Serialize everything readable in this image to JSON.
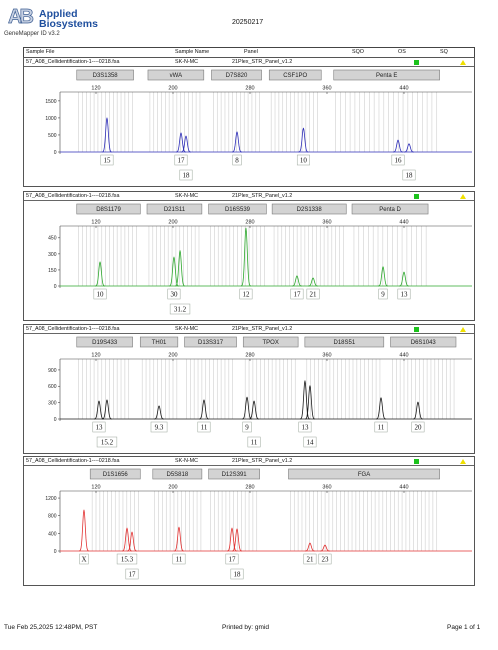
{
  "header": {
    "logo_mark": "AB",
    "logo_line1": "Applied",
    "logo_line2": "Biosystems",
    "software": "GeneMapper ID v3.2",
    "date": "20250217"
  },
  "table_header": {
    "sample_file": "Sample File",
    "sample_name": "Sample Name",
    "panel": "Panel",
    "sqo": "SQO",
    "os": "OS",
    "sq": "SQ"
  },
  "samples": [
    {
      "file": "57_A08_Cellidentification-1----0218.fsa",
      "name": "SK-N-MC",
      "panel": "21Plex_STR_Panel_v1.2",
      "os_icon": "green-square-icon",
      "sq_icon": "yellow-triangle-icon"
    },
    {
      "file": "57_A08_Cellidentification-1----0218.fsa",
      "name": "SK-N-MC",
      "panel": "21Plex_STR_Panel_v1.2",
      "os_icon": "green-square-icon",
      "sq_icon": "yellow-triangle-icon"
    },
    {
      "file": "57_A08_Cellidentification-1----0218.fsa",
      "name": "SK-N-MC",
      "panel": "21Plex_STR_Panel_v1.2",
      "os_icon": "green-square-icon",
      "sq_icon": "yellow-triangle-icon"
    },
    {
      "file": "57_A08_Cellidentification-1----0218.fsa",
      "name": "SK-N-MC",
      "panel": "21Plex_STR_Panel_v1.2",
      "os_icon": "green-square-icon",
      "sq_icon": "yellow-triangle-icon"
    }
  ],
  "colors": {
    "logo_blue": "#1f4f9e",
    "os_pass": "#1cc21c",
    "sq_flag": "#f0e000",
    "marker_fill": "#d3d3d3",
    "marker_border": "#7b7b7b",
    "bin": "#cfcfcf",
    "label_border": "#9aa69a"
  },
  "chart_data": [
    {
      "type": "line",
      "color": "#2e2eb8",
      "xlim": [
        83,
        515
      ],
      "ylim": [
        0,
        1760
      ],
      "x_ticks": [
        120,
        200,
        280,
        360,
        440
      ],
      "y_ticks": [
        1500,
        1000,
        500,
        0
      ],
      "markers": [
        {
          "name": "D3S1358",
          "range": [
            100,
            159
          ]
        },
        {
          "name": "vWA",
          "range": [
            174,
            232
          ]
        },
        {
          "name": "D7S820",
          "range": [
            240,
            292
          ]
        },
        {
          "name": "CSF1PO",
          "range": [
            300,
            354
          ]
        },
        {
          "name": "Penta E",
          "range": [
            367,
            477
          ]
        }
      ],
      "peaks": [
        {
          "size": 131.4,
          "height": 1000,
          "allele": "15"
        },
        {
          "size": 208.3,
          "height": 560,
          "allele": "17"
        },
        {
          "size": 213.5,
          "height": 470,
          "allele": "18"
        },
        {
          "size": 266.5,
          "height": 590,
          "allele": "8"
        },
        {
          "size": 335.5,
          "height": 700,
          "allele": "10"
        },
        {
          "size": 433.8,
          "height": 350,
          "allele": "16"
        },
        {
          "size": 445.2,
          "height": 240,
          "allele": "18"
        }
      ]
    },
    {
      "type": "line",
      "color": "#2ea82e",
      "xlim": [
        83,
        515
      ],
      "ylim": [
        0,
        560
      ],
      "x_ticks": [
        120,
        200,
        280,
        360,
        440
      ],
      "y_ticks": [
        450,
        300,
        150,
        0
      ],
      "markers": [
        {
          "name": "D8S1179",
          "range": [
            100,
            166
          ]
        },
        {
          "name": "D21S11",
          "range": [
            173,
            230
          ]
        },
        {
          "name": "D16S539",
          "range": [
            237,
            297
          ]
        },
        {
          "name": "D2S1338",
          "range": [
            303,
            380
          ]
        },
        {
          "name": "Penta D",
          "range": [
            386,
            465
          ]
        }
      ],
      "peaks": [
        {
          "size": 124.2,
          "height": 225,
          "allele": "10"
        },
        {
          "size": 201.0,
          "height": 270,
          "allele": "30"
        },
        {
          "size": 207.3,
          "height": 330,
          "allele": "31.2"
        },
        {
          "size": 275.8,
          "height": 540,
          "allele": "12"
        },
        {
          "size": 328.8,
          "height": 95,
          "allele": "17"
        },
        {
          "size": 345.5,
          "height": 75,
          "allele": "21"
        },
        {
          "size": 418.2,
          "height": 180,
          "allele": "9"
        },
        {
          "size": 440.0,
          "height": 130,
          "allele": "13"
        }
      ]
    },
    {
      "type": "line",
      "color": "#1a1a1a",
      "xlim": [
        83,
        515
      ],
      "ylim": [
        0,
        1100
      ],
      "x_ticks": [
        120,
        200,
        280,
        360,
        440
      ],
      "y_ticks": [
        900,
        600,
        300,
        0
      ],
      "markers": [
        {
          "name": "D19S433",
          "range": [
            100,
            158
          ]
        },
        {
          "name": "TH01",
          "range": [
            166,
            205
          ]
        },
        {
          "name": "D13S317",
          "range": [
            212,
            266
          ]
        },
        {
          "name": "TPOX",
          "range": [
            273,
            330
          ]
        },
        {
          "name": "D18S51",
          "range": [
            337,
            419
          ]
        },
        {
          "name": "D6S1043",
          "range": [
            426,
            494
          ]
        }
      ],
      "peaks": [
        {
          "size": 123.1,
          "height": 330,
          "allele": "13"
        },
        {
          "size": 131.4,
          "height": 350,
          "allele": "15.2"
        },
        {
          "size": 185.5,
          "height": 240,
          "allele": "9.3"
        },
        {
          "size": 232.2,
          "height": 350,
          "allele": "11"
        },
        {
          "size": 276.9,
          "height": 400,
          "allele": "9"
        },
        {
          "size": 284.2,
          "height": 330,
          "allele": "11"
        },
        {
          "size": 337.1,
          "height": 700,
          "allele": "13"
        },
        {
          "size": 342.3,
          "height": 610,
          "allele": "14"
        },
        {
          "size": 416.1,
          "height": 390,
          "allele": "11"
        },
        {
          "size": 454.5,
          "height": 310,
          "allele": "20"
        }
      ]
    },
    {
      "type": "line",
      "color": "#e23232",
      "xlim": [
        83,
        515
      ],
      "ylim": [
        0,
        1360
      ],
      "x_ticks": [
        120,
        200,
        280,
        360,
        440
      ],
      "y_ticks": [
        1200,
        800,
        400,
        0
      ],
      "markers": [
        {
          "name": "D1S1656",
          "range": [
            114,
            166
          ]
        },
        {
          "name": "D5S818",
          "range": [
            179,
            230
          ]
        },
        {
          "name": "D12S391",
          "range": [
            237,
            290
          ]
        },
        {
          "name": "FGA",
          "range": [
            320,
            477
          ]
        }
      ],
      "peaks": [
        {
          "size": 107.5,
          "height": 930,
          "allele": "X"
        },
        {
          "size": 152.2,
          "height": 520,
          "allele": "15.3"
        },
        {
          "size": 157.4,
          "height": 430,
          "allele": "17"
        },
        {
          "size": 206.2,
          "height": 540,
          "allele": "11"
        },
        {
          "size": 261.3,
          "height": 520,
          "allele": "17"
        },
        {
          "size": 266.5,
          "height": 500,
          "allele": "18"
        },
        {
          "size": 342.3,
          "height": 180,
          "allele": "21"
        },
        {
          "size": 357.9,
          "height": 135,
          "allele": "23"
        }
      ]
    }
  ],
  "footer": {
    "printed_at": "Tue Feb 25,2025 12:48PM, PST",
    "printed_by": "Printed by: gmid",
    "page": "Page 1 of 1"
  }
}
